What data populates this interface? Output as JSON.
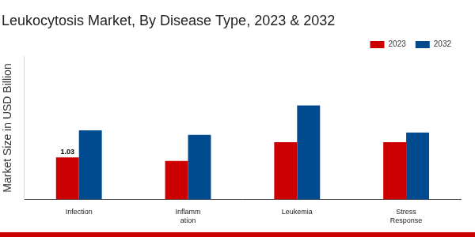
{
  "chart_data": {
    "type": "bar",
    "title": "Leukocytosis Market, By Disease Type, 2023 & 2032",
    "y_label": "Market Size in USD Billion",
    "categories": [
      "Infection",
      "Inflamm\nation",
      "Leukemia",
      "Stress\nResponse"
    ],
    "series": [
      {
        "name": "2023",
        "color": "#cc0000",
        "values": [
          1.03,
          0.94,
          1.4,
          1.4
        ],
        "value_labels": [
          "1.03",
          null,
          null,
          null
        ]
      },
      {
        "name": "2032",
        "color": "#004a8f",
        "values": [
          1.69,
          1.58,
          2.3,
          1.64
        ]
      }
    ],
    "ylim": [
      0,
      3.5
    ],
    "grid": false,
    "legend": "top-right",
    "tick_labels": "x"
  }
}
